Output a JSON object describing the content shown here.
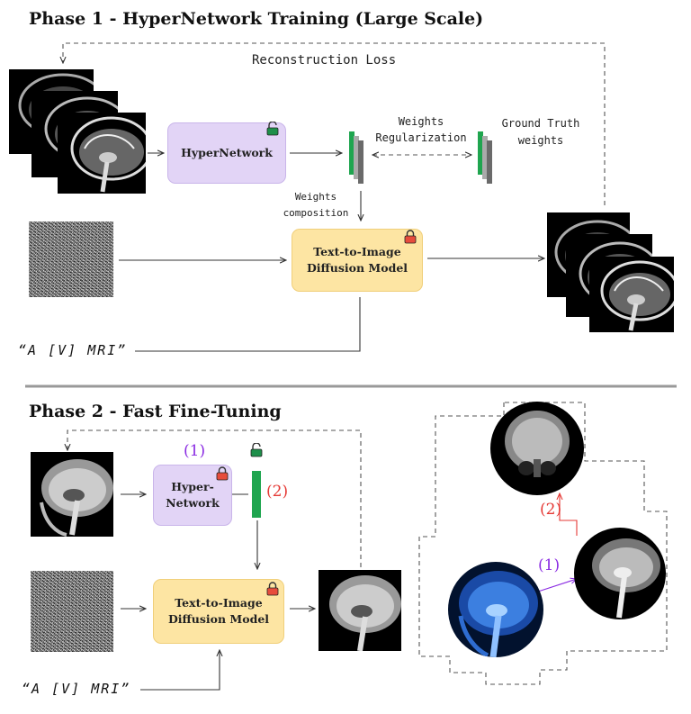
{
  "phase1": {
    "title": "Phase 1 - HyperNetwork Training (Large Scale)",
    "reconstruction_loss": "Reconstruction Loss",
    "hypernetwork": "HyperNetwork",
    "weights_regularization": [
      "Weights",
      "Regularization"
    ],
    "ground_truth": [
      "Ground Truth",
      "weights"
    ],
    "weights_composition": [
      "Weights",
      "composition"
    ],
    "diffusion_model": [
      "Text-to-Image",
      "Diffusion Model"
    ],
    "prompt": "“A [V] MRI”"
  },
  "phase2": {
    "title": "Phase 2 - Fast Fine-Tuning",
    "hypernetwork": [
      "Hyper-",
      "Network"
    ],
    "diffusion_model": [
      "Text-to-Image",
      "Diffusion Model"
    ],
    "prompt": "“A [V] MRI”",
    "step1": "(1)",
    "step2": "(2)",
    "right_step1": "(1)",
    "right_step2": "(2)"
  },
  "colors": {
    "hypernetwork": "#e2d4f6",
    "diffusion": "#fde5a3",
    "weights_bar": "#1fa54f",
    "locked": "#e74c3c",
    "unlocked": "#1e8f4a",
    "step1": "#8a2be2",
    "step2": "#e53935"
  },
  "icons": [
    "lock-icon",
    "unlock-icon"
  ]
}
